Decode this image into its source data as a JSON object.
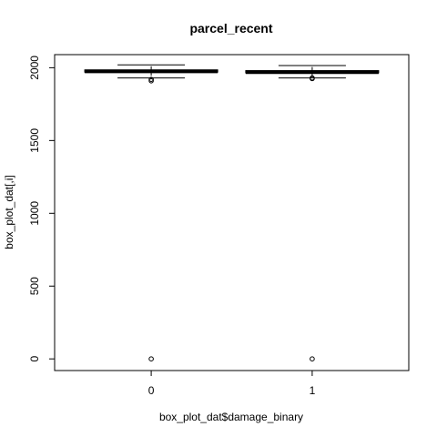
{
  "chart_data": {
    "type": "box",
    "title": "parcel_recent",
    "xlabel": "box_plot_dat$damage_binary",
    "ylabel": "box_plot_dat[,i]",
    "categories": [
      "0",
      "1"
    ],
    "yticks": [
      0,
      500,
      1000,
      1500,
      2000
    ],
    "ylim": [
      -80,
      2090
    ],
    "grid": false,
    "legend": "none",
    "boxes": [
      {
        "category": "0",
        "whisker_low": 1930,
        "q1": 1970,
        "median": 1975,
        "q3": 1985,
        "whisker_high": 2020,
        "outliers": [
          1910,
          1920,
          0
        ]
      },
      {
        "category": "1",
        "whisker_low": 1930,
        "q1": 1965,
        "median": 1970,
        "q3": 1980,
        "whisker_high": 2015,
        "outliers": [
          1925,
          1930,
          0
        ]
      }
    ]
  }
}
